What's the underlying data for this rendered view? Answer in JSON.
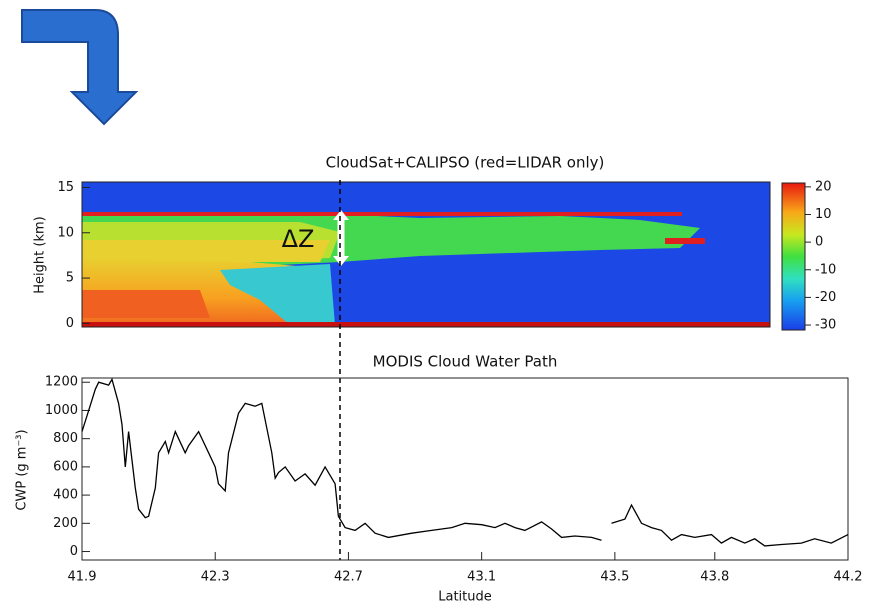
{
  "chart_data": [
    {
      "type": "heatmap",
      "title": "CloudSat+CALIPSO (red=LIDAR only)",
      "ylabel": "Height (km)",
      "ylim": [
        -0.4,
        15.6
      ],
      "yticks": [
        0,
        5,
        10,
        15
      ],
      "clim": [
        -31.8,
        21.4
      ],
      "cticks": [
        20,
        10,
        0,
        -10,
        -20,
        -30
      ],
      "annotation": "ΔZ"
    },
    {
      "type": "line",
      "title": "MODIS Cloud Water Path",
      "xlabel": "Latitude",
      "ylabel": "CWP (g m⁻³)",
      "xlim": [
        41.9,
        44.2
      ],
      "xticks": [
        41.9,
        42.3,
        42.7,
        43.1,
        43.5,
        43.8,
        44.2
      ],
      "ylim": [
        -60,
        1230
      ],
      "yticks": [
        0,
        200,
        400,
        600,
        800,
        1000,
        1200
      ],
      "x": [
        41.9,
        41.92,
        41.94,
        41.95,
        41.98,
        41.99,
        42.01,
        42.02,
        42.03,
        42.04,
        42.06,
        42.07,
        42.09,
        42.1,
        42.12,
        42.13,
        42.15,
        42.16,
        42.18,
        42.19,
        42.21,
        42.22,
        42.25,
        42.28,
        42.3,
        42.31,
        42.33,
        42.34,
        42.37,
        42.39,
        42.42,
        42.44,
        42.47,
        42.48,
        42.49,
        42.51,
        42.54,
        42.57,
        42.6,
        42.63,
        42.66,
        42.67,
        42.69,
        42.72,
        42.75,
        42.78,
        42.82,
        42.89,
        42.95,
        43.01,
        43.05,
        43.1,
        43.14,
        43.17,
        43.2,
        43.23,
        43.28,
        43.31,
        43.34,
        43.38,
        43.43,
        43.46,
        43.47,
        43.49,
        43.53,
        43.55,
        43.58,
        43.61,
        43.64,
        43.67,
        43.7,
        43.74,
        43.79,
        43.82,
        43.85,
        43.89,
        43.92,
        43.95,
        44.0,
        44.06,
        44.1,
        44.15,
        44.2
      ],
      "series": [
        {
          "color": "#000000",
          "values": [
            850,
            1000,
            1150,
            1200,
            1180,
            1220,
            1050,
            900,
            600,
            850,
            450,
            300,
            240,
            250,
            450,
            700,
            780,
            700,
            850,
            800,
            700,
            750,
            850,
            700,
            600,
            480,
            430,
            700,
            980,
            1050,
            1030,
            1050,
            700,
            520,
            560,
            600,
            500,
            550,
            470,
            600,
            480,
            250,
            170,
            150,
            200,
            130,
            100,
            130,
            150,
            170,
            200,
            190,
            170,
            200,
            170,
            150,
            210,
            160,
            100,
            110,
            100,
            80,
            null,
            200,
            230,
            330,
            200,
            170,
            150,
            80,
            120,
            100,
            120,
            60,
            100,
            60,
            90,
            40,
            50,
            60,
            90,
            60,
            120
          ]
        }
      ]
    }
  ]
}
